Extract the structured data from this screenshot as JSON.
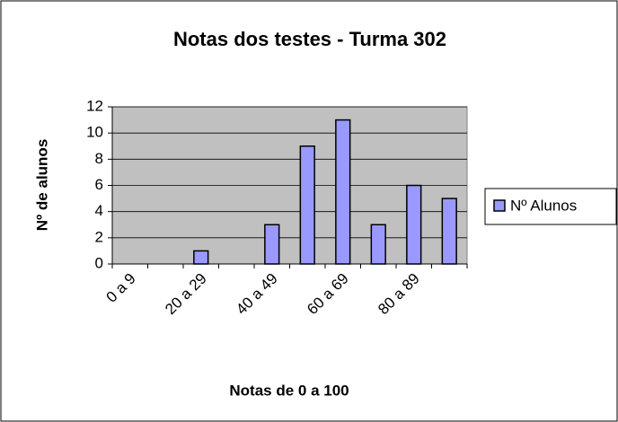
{
  "chart_data": {
    "type": "bar",
    "title": "Notas dos testes - Turma 302",
    "x_label": "Notas de 0 a 100",
    "y_label": "Nº de alunos",
    "categories": [
      "0 a 9",
      null,
      "20 a 29",
      null,
      "40 a 49",
      null,
      "60 a 69",
      null,
      "80 a 89",
      null
    ],
    "series": [
      {
        "name": "Nº Alunos",
        "color": "#9999ff",
        "values": [
          0,
          0,
          1,
          0,
          3,
          9,
          11,
          3,
          6,
          5
        ]
      }
    ],
    "ylim": [
      0,
      12
    ],
    "yticks": [
      0,
      2,
      4,
      6,
      8,
      10,
      12
    ],
    "grid": true,
    "legend": "right"
  }
}
